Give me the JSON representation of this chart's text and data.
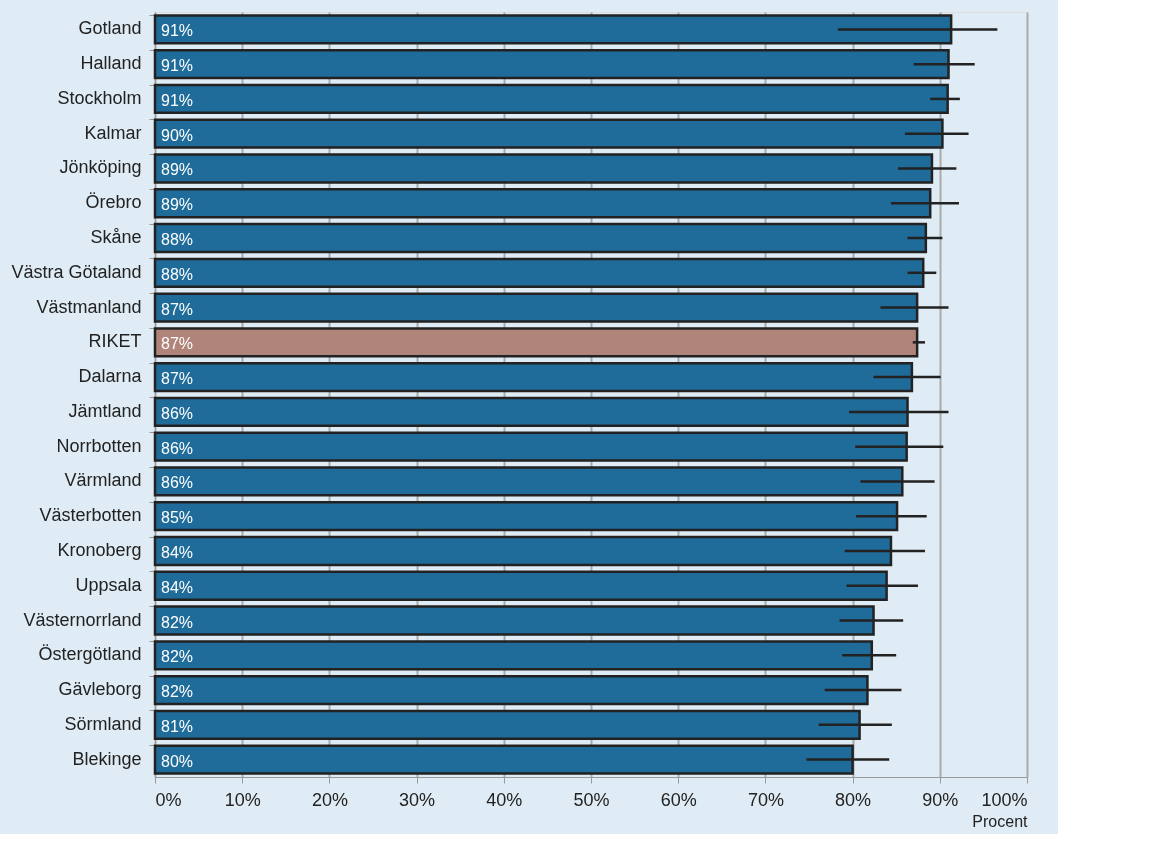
{
  "chart_data": {
    "type": "bar",
    "orientation": "horizontal",
    "xlabel": "Procent",
    "categories": [
      "Gotland",
      "Halland",
      "Stockholm",
      "Kalmar",
      "Jönköping",
      "Örebro",
      "Skåne",
      "Västra Götaland",
      "Västmanland",
      "RIKET",
      "Dalarna",
      "Jämtland",
      "Norrbotten",
      "Värmland",
      "Västerbotten",
      "Kronoberg",
      "Uppsala",
      "Västernorrland",
      "Östergötland",
      "Gävleborg",
      "Sörmland",
      "Blekinge"
    ],
    "values": [
      91.3,
      91.0,
      90.9,
      90.3,
      89.1,
      88.9,
      88.4,
      88.1,
      87.4,
      87.4,
      86.8,
      86.3,
      86.2,
      85.7,
      85.1,
      84.4,
      83.9,
      82.4,
      82.2,
      81.7,
      80.8,
      80.0
    ],
    "value_labels": [
      "91%",
      "91%",
      "91%",
      "90%",
      "89%",
      "89%",
      "88%",
      "88%",
      "87%",
      "87%",
      "87%",
      "86%",
      "86%",
      "86%",
      "85%",
      "84%",
      "84%",
      "82%",
      "82%",
      "82%",
      "81%",
      "80%"
    ],
    "errors": [
      [
        78.3,
        96.6
      ],
      [
        87.0,
        94.0
      ],
      [
        88.9,
        92.3
      ],
      [
        86.0,
        93.3
      ],
      [
        85.2,
        91.9
      ],
      [
        84.4,
        92.2
      ],
      [
        86.3,
        90.3
      ],
      [
        86.3,
        89.6
      ],
      [
        83.2,
        91.0
      ],
      [
        86.9,
        88.3
      ],
      [
        82.4,
        90.1
      ],
      [
        79.6,
        91.0
      ],
      [
        80.3,
        90.4
      ],
      [
        80.9,
        89.4
      ],
      [
        80.4,
        88.5
      ],
      [
        79.1,
        88.3
      ],
      [
        79.3,
        87.5
      ],
      [
        78.5,
        85.8
      ],
      [
        78.8,
        85.0
      ],
      [
        76.8,
        85.6
      ],
      [
        76.1,
        84.5
      ],
      [
        74.7,
        84.2
      ]
    ],
    "colors": [
      "#1f6b99",
      "#1f6b99",
      "#1f6b99",
      "#1f6b99",
      "#1f6b99",
      "#1f6b99",
      "#1f6b99",
      "#1f6b99",
      "#1f6b99",
      "#b08478",
      "#1f6b99",
      "#1f6b99",
      "#1f6b99",
      "#1f6b99",
      "#1f6b99",
      "#1f6b99",
      "#1f6b99",
      "#1f6b99",
      "#1f6b99",
      "#1f6b99",
      "#1f6b99",
      "#1f6b99"
    ],
    "xlim": [
      0,
      100
    ],
    "xticks": [
      {
        "value": 0,
        "label": "0%"
      },
      {
        "value": 10,
        "label": "10%"
      },
      {
        "value": 20,
        "label": "20%"
      },
      {
        "value": 30,
        "label": "30%"
      },
      {
        "value": 40,
        "label": "40%"
      },
      {
        "value": 50,
        "label": "50%"
      },
      {
        "value": 60,
        "label": "60%"
      },
      {
        "value": 70,
        "label": "70%"
      },
      {
        "value": 80,
        "label": "80%"
      },
      {
        "value": 90,
        "label": "90%"
      },
      {
        "value": 100,
        "label": "100%"
      }
    ],
    "grid": "x"
  }
}
